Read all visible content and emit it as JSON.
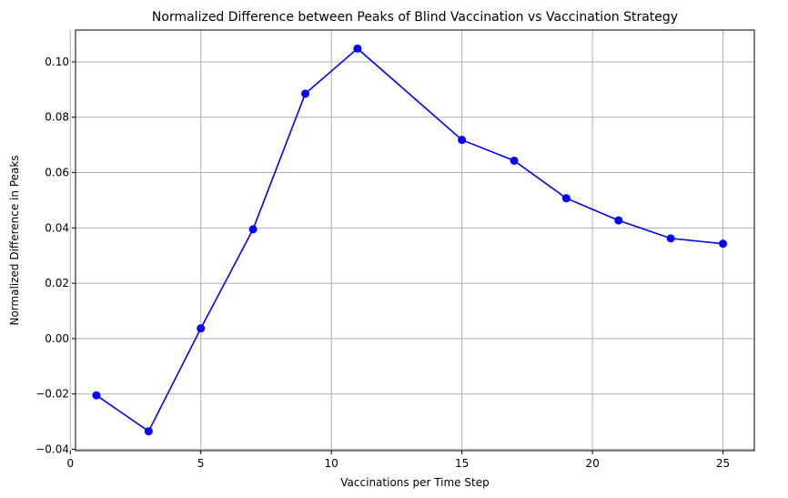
{
  "chart_data": {
    "type": "line",
    "title": "Normalized Difference between Peaks of Blind Vaccination vs Vaccination Strategy",
    "xlabel": "Vaccinations per Time Step",
    "ylabel": "Normalized Difference in Peaks",
    "xlim": [
      0.2,
      26.2
    ],
    "ylim": [
      -0.0405,
      0.1115
    ],
    "x_ticks": [
      0,
      5,
      10,
      15,
      20,
      25
    ],
    "x_tick_labels": [
      "0",
      "5",
      "10",
      "15",
      "20",
      "25"
    ],
    "y_ticks": [
      -0.04,
      -0.02,
      0.0,
      0.02,
      0.04,
      0.06,
      0.08,
      0.1
    ],
    "y_tick_labels": [
      "−0.04",
      "−0.02",
      "0.00",
      "0.02",
      "0.04",
      "0.06",
      "0.08",
      "0.10"
    ],
    "grid": true,
    "series": [
      {
        "color": "#0000ff",
        "marker": "circle",
        "x": [
          1,
          3,
          5,
          7,
          9,
          11,
          15,
          17,
          19,
          21,
          23,
          25
        ],
        "y": [
          -0.0205,
          -0.0335,
          0.0037,
          0.0395,
          0.0885,
          0.1048,
          0.0718,
          0.0643,
          0.0507,
          0.0427,
          0.0362,
          0.0343
        ]
      }
    ]
  }
}
